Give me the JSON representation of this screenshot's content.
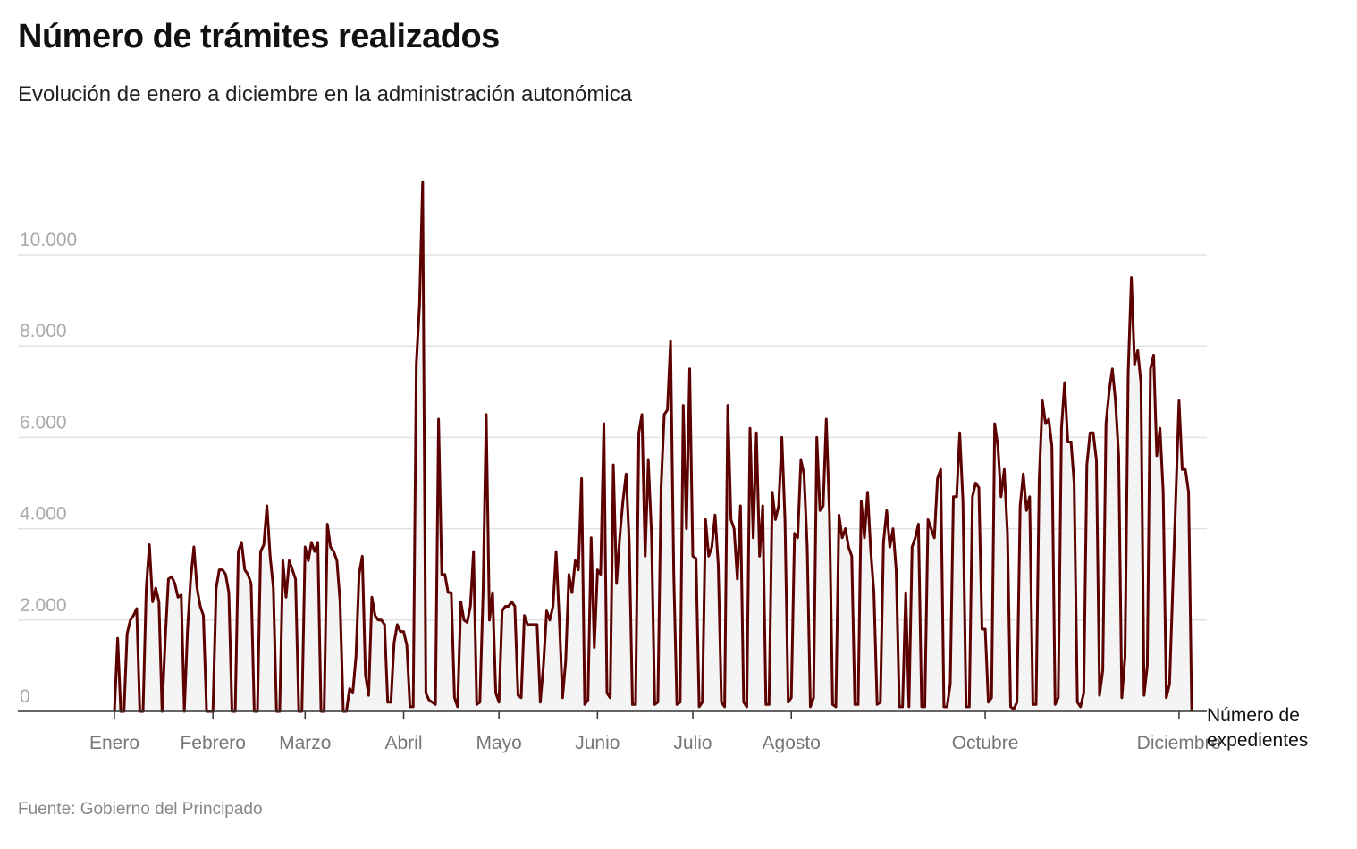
{
  "title": "Número de trámites realizados",
  "subtitle": "Evolución de enero a diciembre en la administración autonómica",
  "source": "Fuente: Gobierno del Principado",
  "chart_data": {
    "type": "area",
    "series_label": "Número de expedientes",
    "color": "#5c0000",
    "fill": "#f4f4f4",
    "grid": true,
    "ylim": [
      0,
      11600
    ],
    "yticks": [
      0,
      2000,
      4000,
      6000,
      8000,
      10000
    ],
    "ytick_labels": [
      "0",
      "2.000",
      "4.000",
      "6.000",
      "8.000",
      "10.000"
    ],
    "xtick_labels": [
      "Enero",
      "Febrero",
      "Marzo",
      "Abril",
      "Mayo",
      "Junio",
      "Julio",
      "Agosto",
      "Octubre",
      "Diciembre"
    ],
    "daily_values_by_month": {
      "Enero": [
        0,
        1600,
        0,
        0,
        1700,
        2000,
        2100,
        2250,
        0,
        0,
        2700,
        3650,
        2400,
        2700,
        2400,
        0,
        1600,
        2900,
        2950,
        2800,
        2500,
        2550,
        0,
        1800,
        2900,
        3600,
        2700,
        2300,
        2100,
        0,
        0
      ],
      "Febrero": [
        0,
        2700,
        3100,
        3100,
        3000,
        2600,
        0,
        0,
        3500,
        3700,
        3100,
        3000,
        2800,
        0,
        0,
        3500,
        3650,
        4500,
        3400,
        2700,
        0,
        0,
        3300,
        2500,
        3300,
        3100,
        2900,
        0,
        0
      ],
      "Marzo": [
        3600,
        3300,
        3700,
        3500,
        3700,
        0,
        0,
        4100,
        3600,
        3500,
        3300,
        2400,
        0,
        0,
        500,
        400,
        1200,
        3000,
        3400,
        800,
        350,
        2500,
        2100,
        2000,
        2000,
        1900,
        200,
        200,
        1500,
        1900,
        1750
      ],
      "Abril": [
        1750,
        1450,
        100,
        100,
        7600,
        8900,
        11600,
        400,
        250,
        200,
        150,
        6400,
        3000,
        3000,
        2600,
        2600,
        300,
        100,
        2400,
        2000,
        1950,
        2300,
        3500,
        150,
        200,
        2600,
        6500,
        2000,
        2600,
        400
      ],
      "Mayo": [
        200,
        2200,
        2300,
        2300,
        2400,
        2300,
        350,
        300,
        2100,
        1900,
        1900,
        1900,
        1900,
        200,
        1000,
        2200,
        2000,
        2300,
        3500,
        2000,
        300,
        1100,
        3000,
        2600,
        3300,
        3100,
        5100,
        150,
        250,
        3800,
        1400
      ],
      "Junio": [
        3100,
        3000,
        6300,
        400,
        300,
        5400,
        2800,
        3800,
        4600,
        5200,
        3700,
        150,
        150,
        6100,
        6500,
        3400,
        5500,
        3900,
        150,
        200,
        4900,
        6500,
        6600,
        8100,
        3000,
        150,
        200,
        6700,
        4000,
        7500
      ],
      "Julio": [
        3400,
        3350,
        100,
        200,
        4200,
        3400,
        3600,
        4300,
        3200,
        200,
        100,
        6700,
        4200,
        4000,
        2900,
        4500,
        200,
        100,
        6200,
        3800,
        6100,
        3400,
        4500,
        150,
        150,
        4800,
        4200,
        4500,
        6000,
        4200,
        200
      ],
      "Agosto": [
        300,
        3900,
        3800,
        5500,
        5200,
        3600,
        100,
        300,
        6000,
        4400,
        4500,
        6400,
        4300,
        150,
        100,
        4300,
        3800,
        4000,
        3600,
        3400,
        150,
        150,
        4600,
        3800,
        4800,
        3500,
        2600,
        150,
        200,
        3700,
        4400
      ],
      "Septiembre": [
        3600,
        4000,
        3100,
        100,
        100,
        2600,
        100,
        3600,
        3800,
        4100,
        100,
        100,
        4200,
        4000,
        3800,
        5100,
        5300,
        100,
        100,
        600,
        4700,
        4700,
        6100,
        4600,
        100,
        100,
        4700,
        5000,
        4900,
        1800
      ],
      "Octubre": [
        1800,
        200,
        300,
        6300,
        5800,
        4700,
        5300,
        3900,
        100,
        50,
        200,
        4500,
        5200,
        4400,
        4700,
        150,
        150,
        5100,
        6800,
        6300,
        6400,
        5800,
        150,
        300,
        6200,
        7200,
        5900,
        5900,
        5000,
        200,
        100
      ],
      "Noviembre": [
        400,
        5400,
        6100,
        6100,
        5500,
        350,
        900,
        6300,
        7000,
        7500,
        6800,
        5600,
        300,
        1200,
        7400,
        9500,
        7600,
        7900,
        7200,
        350,
        1000,
        7500,
        7800,
        5600,
        6200,
        4800,
        300,
        600
      ],
      "Diciembre": [
        6800,
        5300,
        5300,
        4800,
        0
      ]
    }
  }
}
